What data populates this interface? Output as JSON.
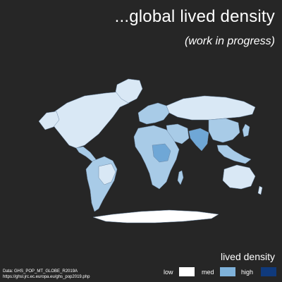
{
  "title": "...global lived density",
  "subtitle": "(work in progress)",
  "legend": {
    "title": "lived density",
    "items": [
      {
        "label": "low",
        "color": "#ffffff"
      },
      {
        "label": "med",
        "color": "#7fb2da"
      },
      {
        "label": "high",
        "color": "#103a7c"
      }
    ]
  },
  "source": {
    "line1": "Data: GHS_POP_MT_GLOBE_R2019A",
    "line2": "https://ghsl.jrc.ec.europa.eu/ghs_pop2019.php"
  },
  "colors": {
    "background": "#262626",
    "land_light": "#d9e8f5",
    "land_mid": "#a8cbe7",
    "land_dark": "#6fa7d6"
  }
}
